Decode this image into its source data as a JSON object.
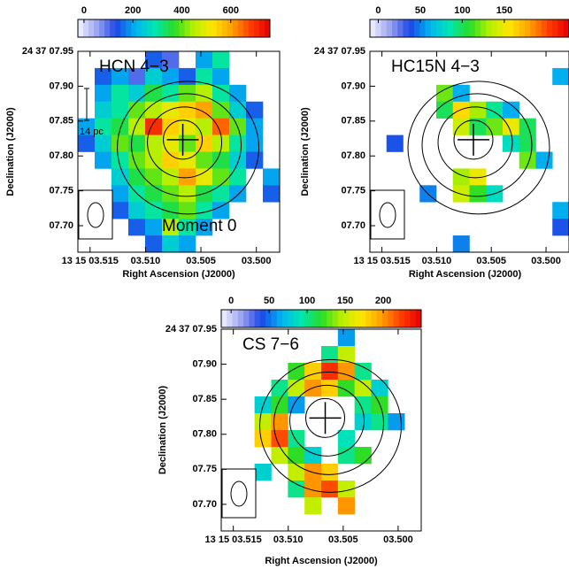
{
  "chart_data": [
    {
      "type": "heatmap",
      "label": "HCN 4−3",
      "annotations": [
        "14 pc",
        "Moment 0"
      ],
      "xlabel": "Right Ascension (J2000)",
      "ylabel": "Declination (J2000)",
      "xlim": [
        3.5161,
        3.4979
      ],
      "ylim": [
        7.662,
        7.95
      ],
      "xticks": [
        {
          "value": 3.515,
          "label": "13 15 03.515"
        },
        {
          "value": 3.51,
          "label": "03.510"
        },
        {
          "value": 3.505,
          "label": "03.505"
        },
        {
          "value": 3.5,
          "label": "03.500"
        }
      ],
      "yticks": [
        {
          "value": 7.95,
          "label": "24 37 07.95"
        },
        {
          "value": 7.9,
          "label": "07.90"
        },
        {
          "value": 7.85,
          "label": "07.85"
        },
        {
          "value": 7.8,
          "label": "07.80"
        },
        {
          "value": 7.75,
          "label": "07.75"
        },
        {
          "value": 7.7,
          "label": "07.70"
        }
      ],
      "clim": [
        -25,
        760
      ],
      "cticks": [
        0,
        200,
        400,
        600
      ],
      "image": [
        [
          null,
          null,
          null,
          null,
          150,
          100,
          null,
          200,
          300,
          null,
          null,
          null
        ],
        [
          null,
          150,
          200,
          100,
          250,
          200,
          150,
          300,
          200,
          null,
          null,
          null
        ],
        [
          null,
          200,
          300,
          250,
          350,
          300,
          400,
          450,
          300,
          200,
          null,
          null
        ],
        [
          null,
          250,
          300,
          400,
          450,
          500,
          550,
          600,
          400,
          250,
          150,
          null
        ],
        [
          200,
          300,
          350,
          450,
          700,
          550,
          500,
          450,
          650,
          400,
          200,
          null
        ],
        [
          150,
          250,
          400,
          350,
          450,
          500,
          400,
          550,
          450,
          300,
          200,
          null
        ],
        [
          null,
          200,
          300,
          400,
          450,
          550,
          500,
          400,
          350,
          250,
          150,
          null
        ],
        [
          null,
          null,
          250,
          350,
          400,
          450,
          600,
          500,
          400,
          300,
          null,
          200
        ],
        [
          null,
          null,
          200,
          300,
          350,
          400,
          450,
          350,
          300,
          200,
          null,
          150
        ],
        [
          null,
          null,
          150,
          250,
          300,
          350,
          400,
          300,
          200,
          null,
          null,
          null
        ],
        [
          null,
          null,
          null,
          150,
          200,
          450,
          300,
          200,
          null,
          null,
          null,
          null
        ],
        [
          null,
          null,
          null,
          null,
          150,
          250,
          200,
          null,
          null,
          null,
          null,
          null
        ]
      ]
    },
    {
      "type": "heatmap",
      "label": "HC15N 4−3",
      "xlabel": "Right Ascension (J2000)",
      "ylabel": "Declination (J2000)",
      "xlim": [
        3.5161,
        3.4979
      ],
      "ylim": [
        7.662,
        7.95
      ],
      "xticks": [
        {
          "value": 3.515,
          "label": "13 15 03.515"
        },
        {
          "value": 3.51,
          "label": "03.510"
        },
        {
          "value": 3.505,
          "label": "03.505"
        },
        {
          "value": 3.5,
          "label": "03.500"
        }
      ],
      "yticks": [
        {
          "value": 7.95,
          "label": "24 37 07.95"
        },
        {
          "value": 7.9,
          "label": "07.90"
        },
        {
          "value": 7.85,
          "label": "07.85"
        },
        {
          "value": 7.8,
          "label": "07.80"
        },
        {
          "value": 7.75,
          "label": "07.75"
        },
        {
          "value": 7.7,
          "label": "07.70"
        }
      ],
      "clim": [
        -10,
        227
      ],
      "cticks": [
        0,
        50,
        100,
        150
      ],
      "image": [
        [
          null,
          null,
          null,
          null,
          null,
          null,
          null,
          null,
          null,
          null,
          null,
          null
        ],
        [
          null,
          null,
          null,
          null,
          null,
          null,
          null,
          null,
          null,
          null,
          null,
          60
        ],
        [
          null,
          null,
          null,
          null,
          120,
          60,
          null,
          null,
          null,
          null,
          null,
          null
        ],
        [
          null,
          null,
          null,
          null,
          100,
          160,
          130,
          90,
          60,
          null,
          null,
          null
        ],
        [
          null,
          null,
          null,
          null,
          null,
          140,
          100,
          120,
          150,
          100,
          null,
          null
        ],
        [
          null,
          40,
          null,
          null,
          null,
          null,
          null,
          null,
          80,
          100,
          null,
          null
        ],
        [
          null,
          null,
          null,
          null,
          null,
          null,
          null,
          null,
          null,
          120,
          60,
          null
        ],
        [
          null,
          null,
          null,
          null,
          null,
          130,
          150,
          null,
          null,
          null,
          null,
          null
        ],
        [
          null,
          null,
          null,
          50,
          null,
          140,
          110,
          80,
          null,
          null,
          null,
          null
        ],
        [
          null,
          null,
          null,
          null,
          null,
          null,
          null,
          null,
          null,
          null,
          null,
          60
        ],
        [
          null,
          null,
          null,
          null,
          null,
          null,
          null,
          null,
          null,
          null,
          null,
          40
        ],
        [
          null,
          null,
          null,
          null,
          null,
          50,
          null,
          null,
          null,
          null,
          null,
          null
        ]
      ]
    },
    {
      "type": "heatmap",
      "label": "CS 7−6",
      "xlabel": "Right Ascension (J2000)",
      "ylabel": "Declination (J2000)",
      "xlim": [
        3.5161,
        3.4979
      ],
      "ylim": [
        7.662,
        7.95
      ],
      "xticks": [
        {
          "value": 3.515,
          "label": "13 15 03.515"
        },
        {
          "value": 3.51,
          "label": "03.510"
        },
        {
          "value": 3.505,
          "label": "03.505"
        },
        {
          "value": 3.5,
          "label": "03.500"
        }
      ],
      "yticks": [
        {
          "value": 7.95,
          "label": "24 37 07.95"
        },
        {
          "value": 7.9,
          "label": "07.90"
        },
        {
          "value": 7.85,
          "label": "07.85"
        },
        {
          "value": 7.8,
          "label": "07.80"
        },
        {
          "value": 7.75,
          "label": "07.75"
        },
        {
          "value": 7.7,
          "label": "07.70"
        }
      ],
      "clim": [
        -13,
        250
      ],
      "cticks": [
        0,
        50,
        100,
        150,
        200
      ],
      "image": [
        [
          null,
          null,
          null,
          null,
          null,
          null,
          null,
          60,
          null,
          null,
          null,
          null
        ],
        [
          null,
          null,
          null,
          null,
          null,
          null,
          100,
          150,
          null,
          null,
          null,
          null
        ],
        [
          null,
          null,
          null,
          null,
          120,
          180,
          230,
          200,
          100,
          null,
          null,
          null
        ],
        [
          null,
          null,
          null,
          100,
          150,
          200,
          180,
          120,
          150,
          80,
          null,
          null
        ],
        [
          null,
          null,
          80,
          120,
          60,
          null,
          null,
          null,
          100,
          120,
          null,
          null
        ],
        [
          null,
          null,
          150,
          200,
          null,
          null,
          null,
          null,
          80,
          100,
          60,
          null
        ],
        [
          null,
          null,
          180,
          220,
          100,
          null,
          null,
          90,
          null,
          null,
          null,
          null
        ],
        [
          null,
          null,
          null,
          150,
          120,
          80,
          null,
          100,
          120,
          null,
          null,
          null
        ],
        [
          null,
          null,
          80,
          null,
          150,
          200,
          180,
          null,
          null,
          null,
          null,
          null
        ],
        [
          null,
          null,
          null,
          null,
          100,
          200,
          220,
          150,
          null,
          null,
          null,
          null
        ],
        [
          null,
          null,
          null,
          null,
          null,
          150,
          null,
          200,
          null,
          null,
          null,
          null
        ],
        [
          null,
          null,
          null,
          null,
          null,
          null,
          null,
          null,
          null,
          null,
          null,
          null
        ]
      ]
    }
  ],
  "colormap": [
    "#f4f4ff",
    "#9aa4f0",
    "#1e46e6",
    "#00b4f0",
    "#00e6b4",
    "#28dc28",
    "#b4f000",
    "#ffe600",
    "#ffa000",
    "#ff3c00",
    "#e60000"
  ]
}
